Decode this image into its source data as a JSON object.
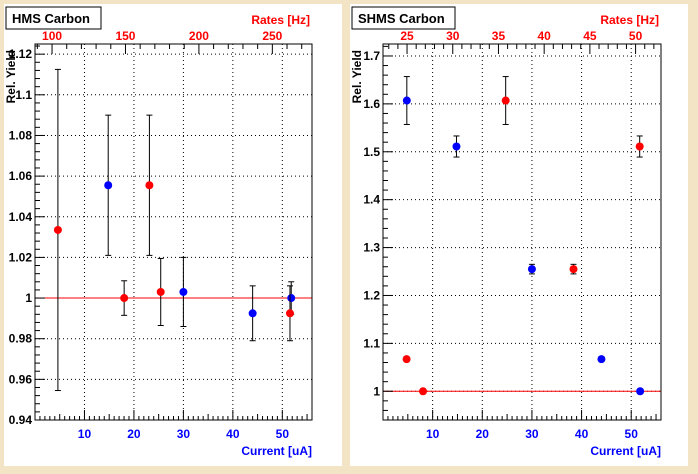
{
  "colors": {
    "blue": "#0000ff",
    "red": "#ff0000",
    "frame": "#d2b48c",
    "reference_line": "#ff0000"
  },
  "chart_data": [
    {
      "type": "scatter",
      "title": "HMS Carbon",
      "ylabel": "Rel. Yield",
      "xlabel": "Current [uA]",
      "x2label": "Rates [Hz]",
      "xlim": [
        0,
        56
      ],
      "ylim": [
        0.94,
        1.125
      ],
      "x2lim": [
        88.4,
        277
      ],
      "xticks": [
        "10",
        "20",
        "30",
        "40",
        "50"
      ],
      "yticks": [
        "0.94",
        "0.96",
        "0.98",
        "1",
        "1.02",
        "1.04",
        "1.06",
        "1.08",
        "1.1",
        "1.12"
      ],
      "x2ticks": [
        "100",
        "150",
        "200",
        "250"
      ],
      "grid": true,
      "reference_line_y": 1.0,
      "series": [
        {
          "axis": "bottom",
          "color": "blue",
          "points": [
            {
              "x": 14.8,
              "y": 1.0555,
              "err": 0.0345
            },
            {
              "x": 30.0,
              "y": 1.003,
              "err": 0.017
            },
            {
              "x": 44.0,
              "y": 0.9925,
              "err": 0.0135
            },
            {
              "x": 51.8,
              "y": 1.0,
              "err": 0.008
            }
          ]
        },
        {
          "axis": "top",
          "color": "red",
          "points": [
            {
              "x": 104.0,
              "y": 1.0335,
              "err": 0.079
            },
            {
              "x": 149.1,
              "y": 1.0,
              "err": 0.0085
            },
            {
              "x": 166.3,
              "y": 1.0555,
              "err": 0.0345
            },
            {
              "x": 174.0,
              "y": 1.003,
              "err": 0.0165
            },
            {
              "x": 262.0,
              "y": 0.9925,
              "err": 0.0135
            }
          ]
        }
      ]
    },
    {
      "type": "scatter",
      "title": "SHMS Carbon",
      "ylabel": "Rel. Yield",
      "xlabel": "Current [uA]",
      "x2label": "Rates [Hz]",
      "xlim": [
        0,
        56
      ],
      "ylim": [
        0.94,
        1.725
      ],
      "x2lim": [
        22.37,
        52.78
      ],
      "xticks": [
        "10",
        "20",
        "30",
        "40",
        "50"
      ],
      "yticks": [
        "1",
        "1.1",
        "1.2",
        "1.3",
        "1.4",
        "1.5",
        "1.6",
        "1.7"
      ],
      "x2ticks": [
        "25",
        "30",
        "35",
        "40",
        "45",
        "50"
      ],
      "grid": true,
      "reference_line_y": 1.0,
      "series": [
        {
          "axis": "bottom",
          "color": "blue",
          "points": [
            {
              "x": 4.8,
              "y": 1.607,
              "err": 0.05
            },
            {
              "x": 14.8,
              "y": 1.511,
              "err": 0.022
            },
            {
              "x": 30.0,
              "y": 1.255,
              "err": 0.01
            },
            {
              "x": 44.0,
              "y": 1.067,
              "err": 0.005
            },
            {
              "x": 51.8,
              "y": 1.0,
              "err": 0.004
            }
          ]
        },
        {
          "axis": "top",
          "color": "red",
          "points": [
            {
              "x": 24.95,
              "y": 1.067,
              "err": 0.005
            },
            {
              "x": 26.75,
              "y": 1.0,
              "err": 0.004
            },
            {
              "x": 35.79,
              "y": 1.607,
              "err": 0.05
            },
            {
              "x": 43.21,
              "y": 1.255,
              "err": 0.01
            },
            {
              "x": 50.45,
              "y": 1.511,
              "err": 0.022
            }
          ]
        }
      ]
    }
  ]
}
